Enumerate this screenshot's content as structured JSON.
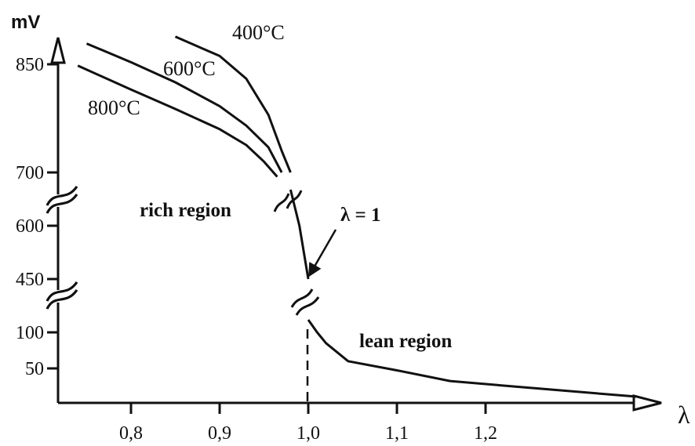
{
  "chart_data": {
    "type": "line",
    "title": "",
    "ylabel": "mV",
    "xlabel": "λ",
    "y_axis_broken": true,
    "x_ticks": [
      {
        "value": 0.8,
        "label": "0,8"
      },
      {
        "value": 0.9,
        "label": "0,9"
      },
      {
        "value": 1.0,
        "label": "1,0"
      },
      {
        "value": 1.1,
        "label": "1,1"
      },
      {
        "value": 1.2,
        "label": "1,2"
      }
    ],
    "y_ticks": [
      {
        "value": 850,
        "label": "850"
      },
      {
        "value": 700,
        "label": "700"
      },
      {
        "value": 600,
        "label": "600"
      },
      {
        "value": 450,
        "label": "450"
      },
      {
        "value": 100,
        "label": "100"
      },
      {
        "value": 50,
        "label": "50"
      }
    ],
    "series": [
      {
        "name": "400°C",
        "points": [
          [
            0.85,
            890
          ],
          [
            0.9,
            862
          ],
          [
            0.93,
            830
          ],
          [
            0.955,
            780
          ],
          [
            0.97,
            730
          ],
          [
            0.98,
            700
          ]
        ]
      },
      {
        "name": "600°C",
        "points": [
          [
            0.75,
            880
          ],
          [
            0.8,
            853
          ],
          [
            0.85,
            825
          ],
          [
            0.9,
            792
          ],
          [
            0.93,
            765
          ],
          [
            0.955,
            735
          ],
          [
            0.97,
            700
          ]
        ]
      },
      {
        "name": "800°C",
        "points": [
          [
            0.74,
            848
          ],
          [
            0.8,
            815
          ],
          [
            0.85,
            788
          ],
          [
            0.9,
            760
          ],
          [
            0.93,
            738
          ],
          [
            0.95,
            715
          ],
          [
            0.965,
            695
          ]
        ]
      },
      {
        "name": "",
        "points": [
          [
            0.98,
            680
          ],
          [
            0.99,
            600
          ],
          [
            1.0,
            450
          ]
        ]
      },
      {
        "name": "",
        "points": [
          [
            1.0,
            120
          ],
          [
            1.01,
            100
          ],
          [
            1.02,
            85
          ],
          [
            1.045,
            60
          ],
          [
            1.1,
            48
          ],
          [
            1.16,
            37
          ],
          [
            1.25,
            30
          ],
          [
            1.37,
            21
          ]
        ]
      }
    ],
    "annotations": [
      {
        "text": "rich region"
      },
      {
        "text": "lean region"
      },
      {
        "text": "λ = 1",
        "x": 1.0
      }
    ]
  }
}
